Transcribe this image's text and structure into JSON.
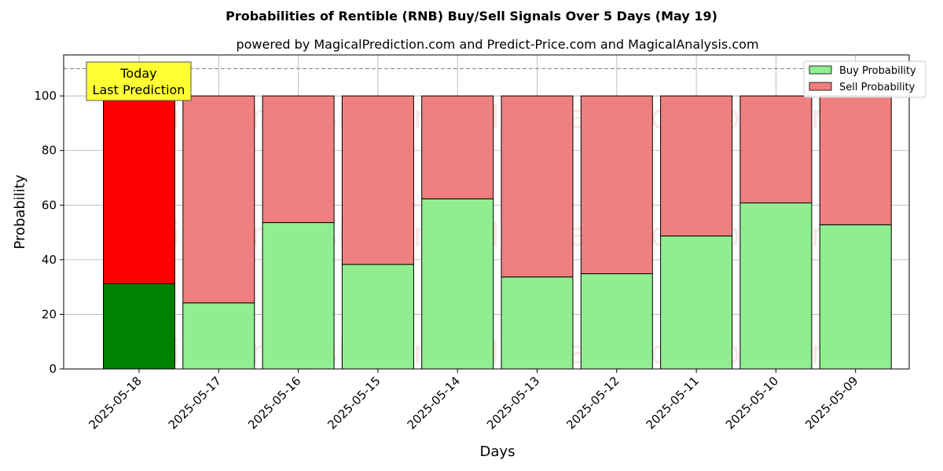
{
  "chart_data": {
    "type": "bar",
    "stacked": true,
    "title": "Probabilities of Rentible (RNB) Buy/Sell Signals Over 5 Days (May 19)",
    "subtitle": "powered by MagicalPrediction.com and Predict-Price.com and MagicalAnalysis.com",
    "xlabel": "Days",
    "ylabel": "Probability",
    "ylim": [
      0,
      115
    ],
    "yticks": [
      0,
      20,
      40,
      60,
      80,
      100
    ],
    "grid": true,
    "legend_position": "top-right",
    "reference_line": 110,
    "categories": [
      "2025-05-18",
      "2025-05-17",
      "2025-05-16",
      "2025-05-15",
      "2025-05-14",
      "2025-05-13",
      "2025-05-12",
      "2025-05-11",
      "2025-05-10",
      "2025-05-09"
    ],
    "series": [
      {
        "name": "Buy Probability",
        "values": [
          31.2,
          24.2,
          53.6,
          38.3,
          62.3,
          33.7,
          34.9,
          48.7,
          60.8,
          52.8
        ],
        "color": "#90ee90",
        "highlight_color": "#008000"
      },
      {
        "name": "Sell Probability",
        "values": [
          68.8,
          75.8,
          46.4,
          61.7,
          37.7,
          66.3,
          65.1,
          51.3,
          39.2,
          47.2
        ],
        "color": "#f08080",
        "highlight_color": "#ff0000"
      }
    ],
    "highlight_index": 0,
    "annotation": {
      "lines": [
        "Today",
        "Last Prediction"
      ],
      "color": "#ffff33"
    },
    "watermarks": [
      "MagicalAnalysis.com",
      "MagicalPrediction.com"
    ]
  }
}
